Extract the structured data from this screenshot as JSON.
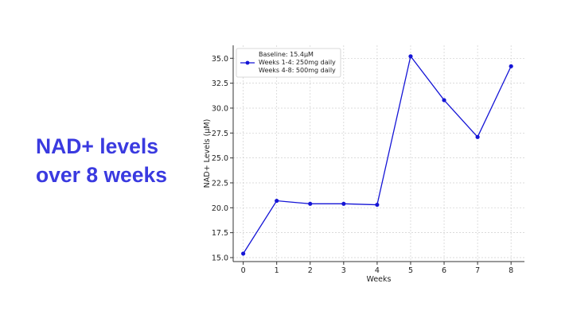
{
  "slide": {
    "title_line1": "NAD+ levels",
    "title_line2": "over 8 weeks"
  },
  "colors": {
    "title": "#3a3ae0",
    "series": "#1515d6",
    "grid": "#cfcfcf",
    "axis": "#333333"
  },
  "chart_data": {
    "type": "line",
    "title": "",
    "xlabel": "Weeks",
    "ylabel": "NAD+ Levels (μM)",
    "xlim": [
      -0.3,
      8.4
    ],
    "ylim": [
      14.6,
      36.3
    ],
    "x_ticks": [
      0,
      1,
      2,
      3,
      4,
      5,
      6,
      7,
      8
    ],
    "y_ticks": [
      15.0,
      17.5,
      20.0,
      22.5,
      25.0,
      27.5,
      30.0,
      32.5,
      35.0
    ],
    "y_tick_labels": [
      "15.0",
      "17.5",
      "20.0",
      "22.5",
      "25.0",
      "27.5",
      "30.0",
      "32.5",
      "35.0"
    ],
    "grid": true,
    "grid_style": "dashed",
    "legend_position": "top-left",
    "legend_lines": [
      "Baseline: 15.4μM",
      "Weeks 1-4: 250mg daily",
      "Weeks 4-8: 500mg daily"
    ],
    "series": [
      {
        "x": [
          0,
          1,
          2,
          3,
          4,
          5,
          6,
          7,
          8
        ],
        "values": [
          15.4,
          20.7,
          20.4,
          20.4,
          20.3,
          35.2,
          30.8,
          27.1,
          34.2
        ],
        "marker": "circle"
      }
    ]
  }
}
